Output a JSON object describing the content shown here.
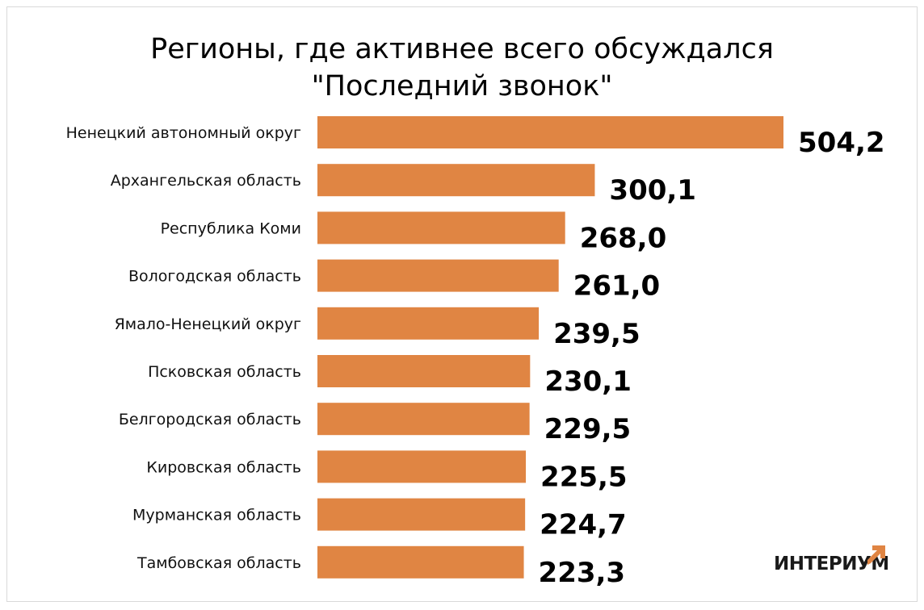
{
  "chart_data": {
    "type": "bar",
    "orientation": "horizontal",
    "title": "Регионы, где активнее всего обсуждался \"Последний звонок\"",
    "title_lines": [
      "Регионы, где активнее всего обсуждался",
      "\"Последний звонок\""
    ],
    "categories": [
      "Ненецкий автономный округ",
      "Архангельская область",
      "Республика Коми",
      "Вологодская область",
      "Ямало-Ненецкий округ",
      "Псковская область",
      "Белгородская область",
      "Кировская область",
      "Мурманская область",
      "Тамбовская область"
    ],
    "values": [
      504.2,
      300.1,
      268.0,
      261.0,
      239.5,
      230.1,
      229.5,
      225.5,
      224.7,
      223.3
    ],
    "value_labels": [
      "504,2",
      "300,1",
      "268,0",
      "261,0",
      "239,5",
      "230,1",
      "229,5",
      "225,5",
      "224,7",
      "223,3"
    ],
    "xlabel": "",
    "ylabel": "",
    "grid": false,
    "legend": false,
    "colors": {
      "bar": "#E08543",
      "text": "#000000"
    }
  },
  "logo": {
    "text": "ИНТЕРИУМ",
    "accent_color": "#E08543"
  }
}
